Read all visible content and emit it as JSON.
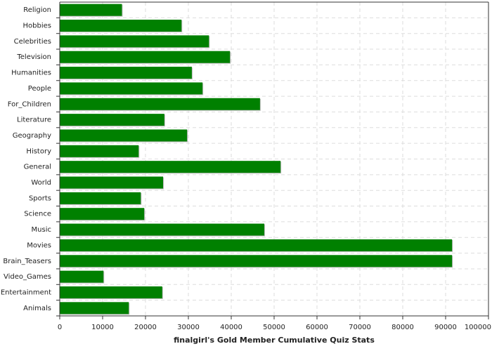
{
  "chart_data": {
    "type": "bar",
    "orientation": "horizontal",
    "title": "finalgirl's Gold Member Cumulative Quiz Stats",
    "categories": [
      "Religion",
      "Hobbies",
      "Celebrities",
      "Television",
      "Humanities",
      "People",
      "For_Children",
      "Literature",
      "Geography",
      "History",
      "General",
      "World",
      "Sports",
      "Science",
      "Music",
      "Movies",
      "Brain_Teasers",
      "Video_Games",
      "Entertainment",
      "Animals"
    ],
    "values": [
      14500,
      28400,
      34800,
      39700,
      30800,
      33300,
      46700,
      24400,
      29700,
      18400,
      51500,
      24100,
      18900,
      19700,
      47700,
      91500,
      91500,
      10200,
      23900,
      16100
    ],
    "color": "#008000",
    "xlim": [
      0,
      100000
    ],
    "xticks": [
      0,
      10000,
      20000,
      30000,
      40000,
      50000,
      60000,
      70000,
      80000,
      90000,
      100000
    ],
    "grid": true
  }
}
